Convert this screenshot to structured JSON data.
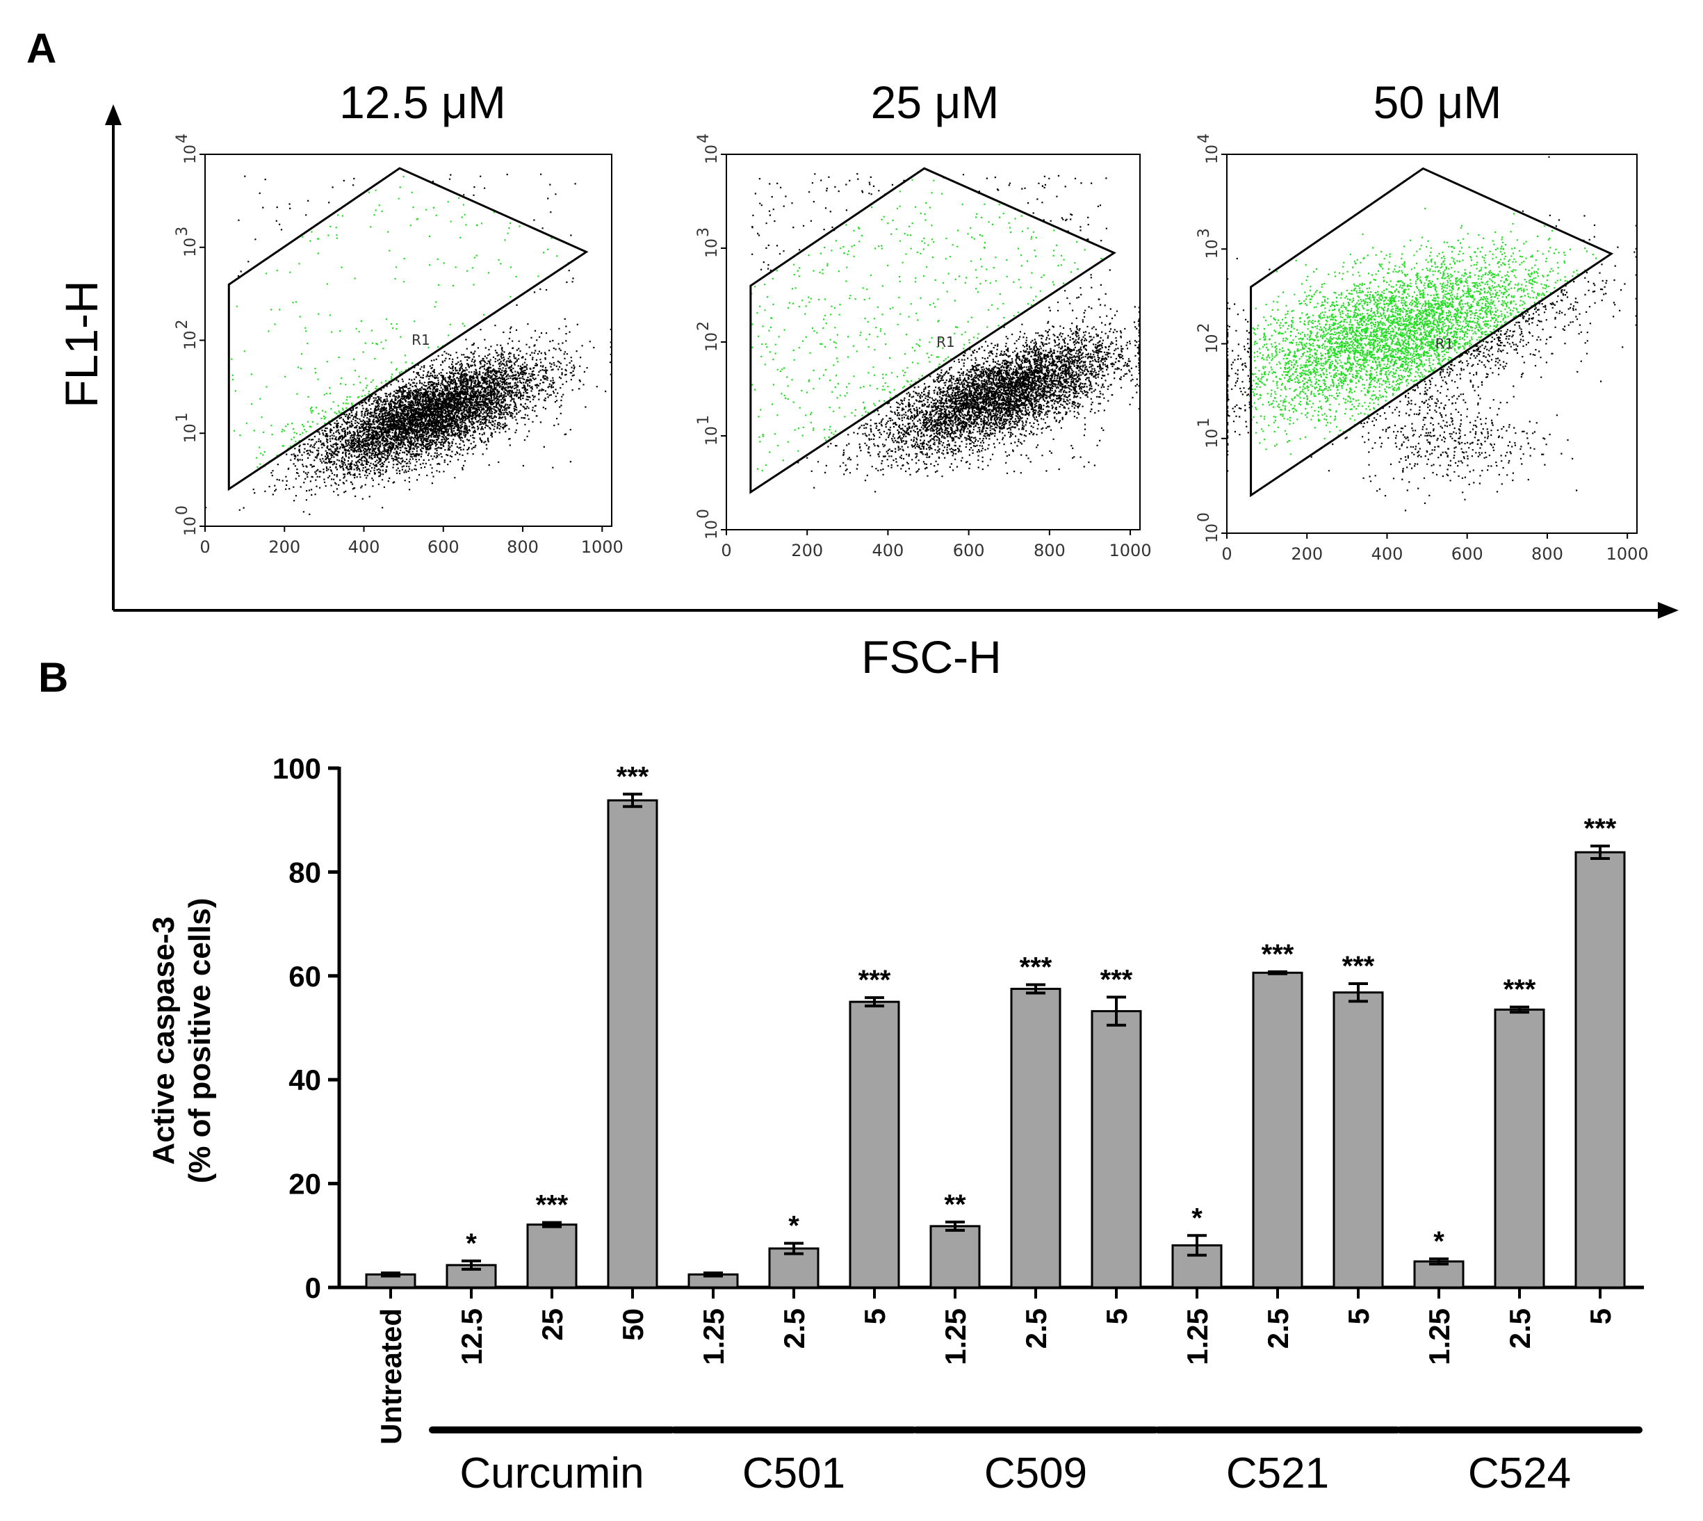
{
  "panel_a": {
    "label": "A",
    "y_axis_label": "FL1-H",
    "x_axis_label": "FSC-H",
    "gate_label": "R1",
    "x_ticks": [
      "0",
      "200",
      "400",
      "600",
      "800",
      "1000"
    ],
    "y_decades": [
      "10",
      "10",
      "10",
      "10",
      "10"
    ],
    "y_exponents": [
      "0",
      "1",
      "2",
      "3",
      "4"
    ],
    "plots": [
      {
        "title": "12.5 μM",
        "positive_fraction": 0.045
      },
      {
        "title": "25 μM",
        "positive_fraction": 0.12
      },
      {
        "title": "50 μM",
        "positive_fraction": 0.94
      }
    ],
    "colors": {
      "gated": "#22dd22",
      "ungated": "#000000"
    }
  },
  "panel_b": {
    "label": "B",
    "y_label_line1": "Active caspase-3",
    "y_label_line2": "(% of positive cells)",
    "bar_color": "#a3a3a3"
  },
  "chart_data": {
    "type": "bar",
    "ylabel": "Active caspase-3 (% of positive cells)",
    "ylim": [
      0,
      100
    ],
    "yticks": [
      "0",
      "20",
      "40",
      "60",
      "80",
      "100"
    ],
    "categories": [
      "Untreated",
      "12.5",
      "25",
      "50",
      "1.25",
      "2.5",
      "5",
      "1.25",
      "2.5",
      "5",
      "1.25",
      "2.5",
      "5",
      "1.25",
      "2.5",
      "5"
    ],
    "values": [
      2.5,
      4.3,
      12.1,
      93.8,
      2.5,
      7.5,
      55.0,
      11.8,
      57.5,
      53.2,
      8.1,
      60.6,
      56.8,
      5.0,
      53.5,
      83.8
    ],
    "errors": [
      0.3,
      0.8,
      0.4,
      1.2,
      0.3,
      1.0,
      0.8,
      0.8,
      0.8,
      2.7,
      1.9,
      0.2,
      1.7,
      0.5,
      0.5,
      1.2
    ],
    "significance": [
      "",
      "*",
      "***",
      "***",
      "",
      "*",
      "***",
      "**",
      "***",
      "***",
      "*",
      "***",
      "***",
      "*",
      "***",
      "***"
    ],
    "groups": [
      {
        "name": "Curcumin",
        "start": 1,
        "end": 3
      },
      {
        "name": "C501",
        "start": 4,
        "end": 6
      },
      {
        "name": "C509",
        "start": 7,
        "end": 9
      },
      {
        "name": "C521",
        "start": 10,
        "end": 12
      },
      {
        "name": "C524",
        "start": 13,
        "end": 15
      }
    ]
  }
}
